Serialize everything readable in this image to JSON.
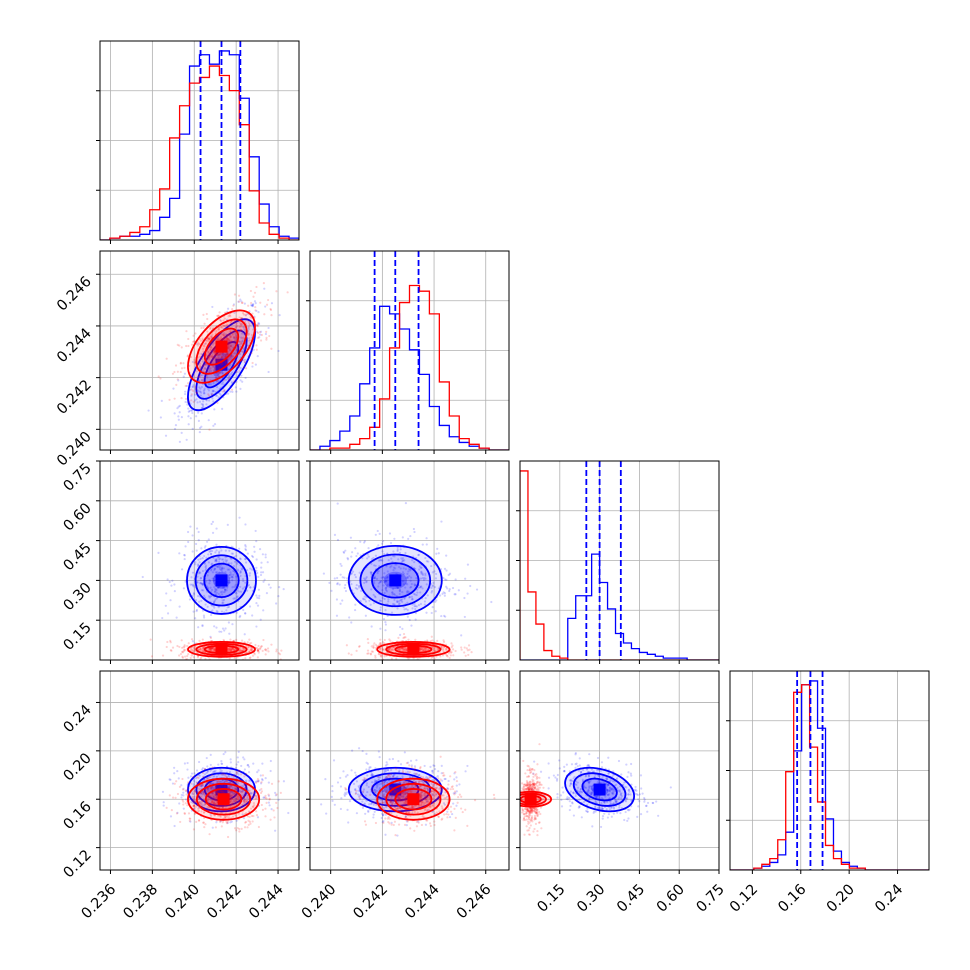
{
  "chart_data": {
    "type": "corner",
    "grid": true,
    "series": [
      {
        "name": "",
        "color": "#0000ff"
      },
      {
        "name": "",
        "color": "#ff0000"
      }
    ],
    "parameters": [
      {
        "range": [
          0.2355,
          0.245
        ],
        "ticks": [
          0.236,
          0.238,
          0.24,
          0.242,
          0.244
        ],
        "tick_labels": [
          "0.236",
          "0.238",
          "0.240",
          "0.242",
          "0.244"
        ],
        "quantiles_blue": [
          0.2403,
          0.2413,
          0.2422
        ],
        "hist_blue": [
          0.0,
          0.01,
          0.02,
          0.02,
          0.03,
          0.05,
          0.12,
          0.22,
          0.56,
          0.92,
          0.98,
          0.93,
          1.0,
          0.98,
          0.75,
          0.44,
          0.19,
          0.07,
          0.02,
          0.01
        ],
        "hist_red": [
          0.0,
          0.01,
          0.02,
          0.04,
          0.07,
          0.16,
          0.27,
          0.54,
          0.71,
          0.83,
          0.86,
          0.92,
          0.87,
          0.79,
          0.61,
          0.26,
          0.09,
          0.03,
          0.01,
          0.0
        ]
      },
      {
        "range": [
          0.2392,
          0.2469
        ],
        "ticks": [
          0.24,
          0.242,
          0.244,
          0.246
        ],
        "tick_labels": [
          "0.240",
          "0.242",
          "0.244",
          "0.246"
        ],
        "quantiles_blue": [
          0.2417,
          0.2425,
          0.2434
        ],
        "hist_blue": [
          0.0,
          0.02,
          0.05,
          0.1,
          0.18,
          0.35,
          0.54,
          0.76,
          0.72,
          0.64,
          0.53,
          0.4,
          0.23,
          0.13,
          0.07,
          0.04,
          0.02,
          0.01,
          0.0,
          0.0
        ],
        "hist_red": [
          0.0,
          0.0,
          0.01,
          0.01,
          0.03,
          0.06,
          0.12,
          0.27,
          0.54,
          0.78,
          0.87,
          0.84,
          0.72,
          0.36,
          0.18,
          0.06,
          0.03,
          0.01,
          0.0,
          0.0
        ]
      },
      {
        "range": [
          0.0,
          0.75
        ],
        "ticks": [
          0.15,
          0.3,
          0.45,
          0.6,
          0.75
        ],
        "tick_labels": [
          "0.15",
          "0.30",
          "0.45",
          "0.60",
          "0.75"
        ],
        "quantiles_blue": [
          0.25,
          0.3,
          0.38
        ],
        "hist_blue": [
          0.0,
          0.0,
          0.0,
          0.0,
          0.0,
          0.0,
          0.22,
          0.34,
          0.34,
          0.56,
          0.41,
          0.27,
          0.14,
          0.09,
          0.06,
          0.04,
          0.03,
          0.02,
          0.01,
          0.01,
          0.01,
          0.0,
          0.0,
          0.0,
          0.0
        ],
        "hist_red": [
          1.0,
          0.36,
          0.19,
          0.05,
          0.02,
          0.01,
          0.0,
          0.0,
          0.0,
          0.0,
          0.0,
          0.0,
          0.0,
          0.0,
          0.0,
          0.0,
          0.0,
          0.0,
          0.0,
          0.0,
          0.0,
          0.0,
          0.0,
          0.0,
          0.0
        ]
      },
      {
        "range": [
          0.1015,
          0.266
        ],
        "ticks": [
          0.12,
          0.16,
          0.2,
          0.24
        ],
        "tick_labels": [
          "0.12",
          "0.16",
          "0.20",
          "0.24"
        ],
        "quantiles_blue": [
          0.157,
          0.168,
          0.178
        ],
        "hist_blue": [
          0.0,
          0.0,
          0.0,
          0.01,
          0.02,
          0.04,
          0.08,
          0.2,
          0.63,
          0.98,
          1.0,
          0.75,
          0.27,
          0.1,
          0.04,
          0.02,
          0.01,
          0.0,
          0.0,
          0.0,
          0.0,
          0.0,
          0.0,
          0.0,
          0.0
        ],
        "hist_red": [
          0.0,
          0.0,
          0.0,
          0.01,
          0.03,
          0.06,
          0.16,
          0.52,
          0.94,
          0.98,
          0.65,
          0.36,
          0.13,
          0.06,
          0.03,
          0.01,
          0.01,
          0.0,
          0.0,
          0.0,
          0.0,
          0.0,
          0.0,
          0.0,
          0.0
        ]
      }
    ],
    "blobs": [
      {
        "i": 1,
        "j": 0,
        "blue": {
          "c": [
            0.2413,
            0.2425
          ],
          "s": [
            0.0008,
            0.00088
          ],
          "r": 0.7,
          "n": 500
        },
        "red": {
          "c": [
            0.2413,
            0.2432
          ],
          "s": [
            0.0008,
            0.0007
          ],
          "r": 0.55,
          "n": 500
        }
      },
      {
        "i": 2,
        "j": 0,
        "blue": {
          "c": [
            0.2413,
            0.3
          ],
          "s": [
            0.0008,
            0.065
          ],
          "r": 0.0,
          "n": 500
        },
        "red": {
          "c": [
            0.2413,
            0.04
          ],
          "s": [
            0.0008,
            0.014
          ],
          "r": 0.0,
          "n": 500
        }
      },
      {
        "i": 2,
        "j": 1,
        "blue": {
          "c": [
            0.2425,
            0.3
          ],
          "s": [
            0.0009,
            0.065
          ],
          "r": 0.0,
          "n": 500
        },
        "red": {
          "c": [
            0.2432,
            0.04
          ],
          "s": [
            0.0007,
            0.014
          ],
          "r": 0.0,
          "n": 500
        }
      },
      {
        "i": 3,
        "j": 0,
        "blue": {
          "c": [
            0.2413,
            0.168
          ],
          "s": [
            0.0008,
            0.009
          ],
          "r": 0.0,
          "n": 500
        },
        "red": {
          "c": [
            0.2414,
            0.16
          ],
          "s": [
            0.00085,
            0.0085
          ],
          "r": 0.0,
          "n": 500
        }
      },
      {
        "i": 3,
        "j": 1,
        "blue": {
          "c": [
            0.2425,
            0.168
          ],
          "s": [
            0.0009,
            0.009
          ],
          "r": 0.0,
          "n": 500
        },
        "red": {
          "c": [
            0.2432,
            0.16
          ],
          "s": [
            0.0007,
            0.0085
          ],
          "r": 0.0,
          "n": 500
        }
      },
      {
        "i": 3,
        "j": 2,
        "blue": {
          "c": [
            0.3,
            0.168
          ],
          "s": [
            0.065,
            0.009
          ],
          "r": -0.3,
          "n": 500
        },
        "red": {
          "c": [
            0.04,
            0.16
          ],
          "s": [
            0.014,
            0.0085
          ],
          "r": 0.0,
          "n": 500
        }
      }
    ]
  }
}
